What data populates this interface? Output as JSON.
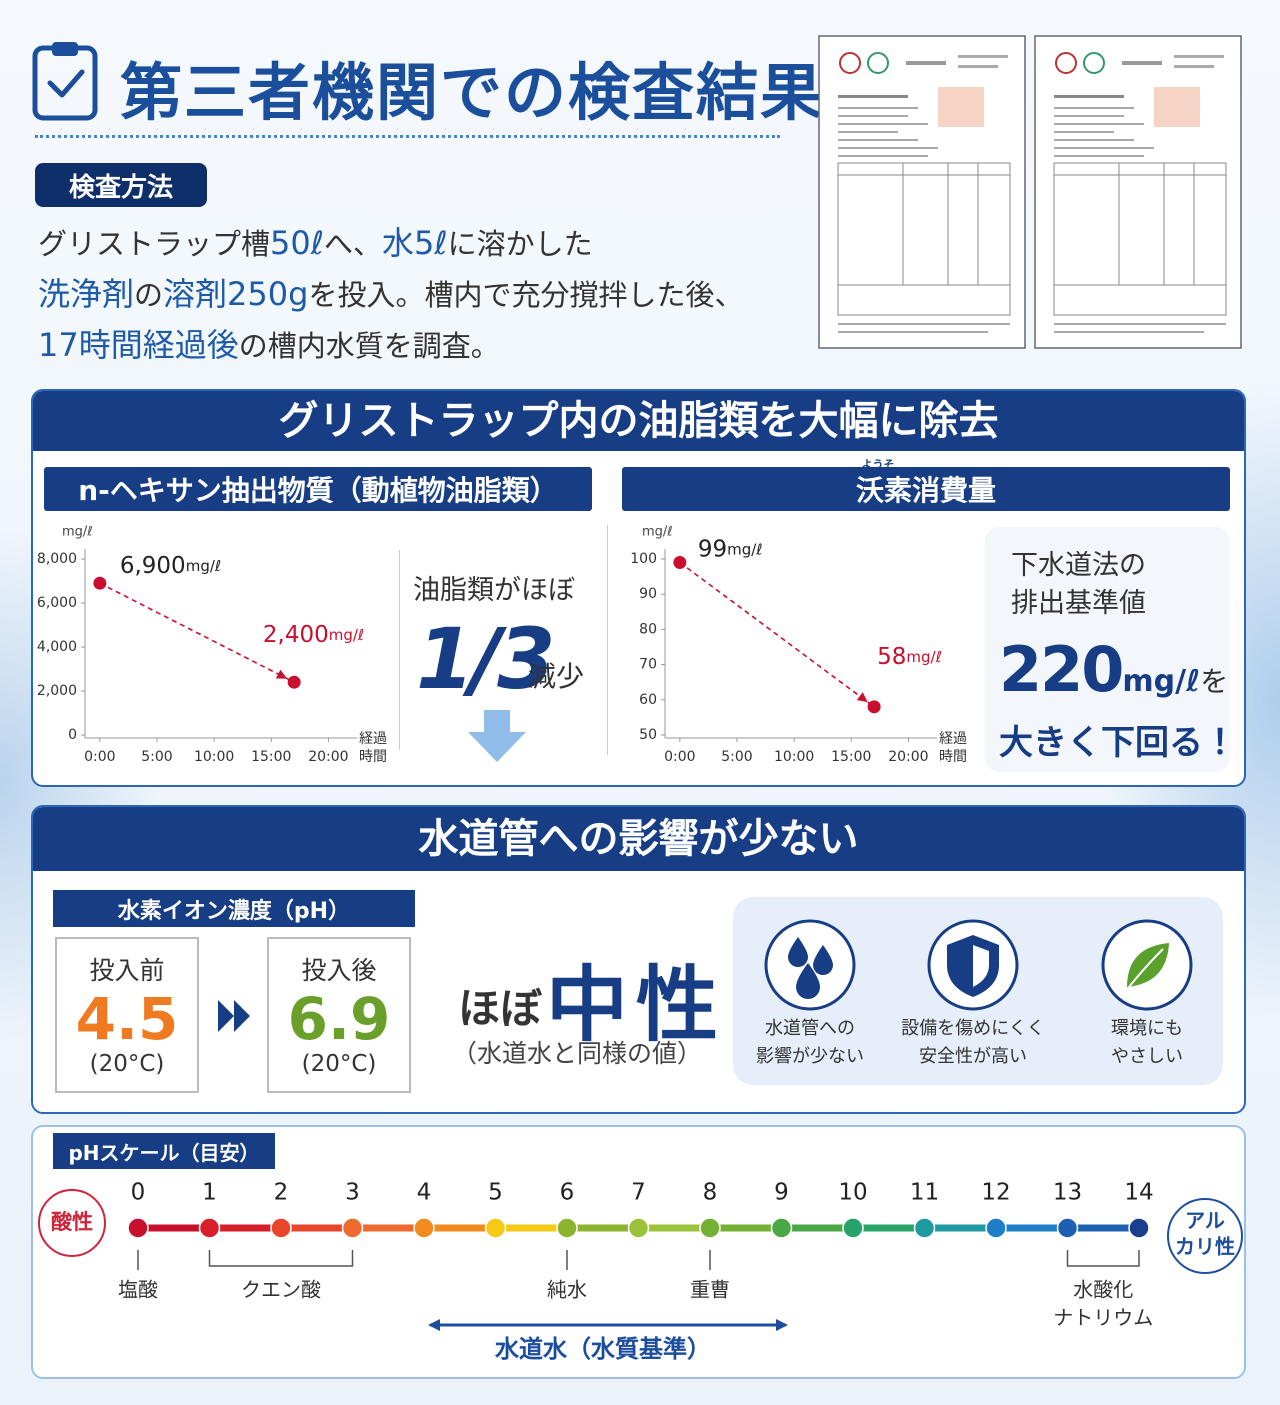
{
  "header": {
    "title": "第三者機関での検査結果"
  },
  "method": {
    "badge": "検査方法",
    "lines": [
      [
        {
          "text": "グリストラップ槽"
        },
        {
          "text": "50ℓ",
          "em": true
        },
        {
          "text": "へ、"
        },
        {
          "text": "水5ℓ",
          "em": true
        },
        {
          "text": "に溶かした"
        }
      ],
      [
        {
          "text": "洗浄剤",
          "em": true
        },
        {
          "text": "の"
        },
        {
          "text": "溶剤250g",
          "em": true
        },
        {
          "text": "を投入。槽内で充分撹拌した後、"
        }
      ],
      [
        {
          "text": "17時間経過後",
          "em": true
        },
        {
          "text": "の槽内水質を調査。"
        }
      ]
    ]
  },
  "section1": {
    "title": "グリストラップ内の油脂類を大幅に除去",
    "charts": [
      {
        "type": "line",
        "title": "n-ヘキサン抽出物質（動植物油脂類）",
        "y_unit": "mg/ℓ",
        "x_label": [
          "経過",
          "時間"
        ],
        "x": [
          0,
          17
        ],
        "values": [
          6900,
          2400
        ],
        "value_labels": [
          "6,900",
          "2,400"
        ],
        "value_unit": "mg/ℓ",
        "color": "#c8102e",
        "xlim": [
          -1.3,
          22.5
        ],
        "xticks": [
          {
            "value": 0,
            "label": "0:00"
          },
          {
            "value": 5,
            "label": "5:00"
          },
          {
            "value": 10,
            "label": "10:00"
          },
          {
            "value": 15,
            "label": "15:00"
          },
          {
            "value": 20,
            "label": "20:00"
          }
        ],
        "ylim": [
          0,
          8000
        ],
        "yticks": [
          0,
          {
            "value": 2000,
            "label": "2,000"
          },
          {
            "value": 4000,
            "label": "4,000"
          },
          {
            "value": 6000,
            "label": "6,000"
          },
          {
            "value": 8000,
            "label": "8,000"
          }
        ],
        "note": {
          "lead": "油脂類がほぼ",
          "big": "1/3",
          "tail": "減少"
        }
      },
      {
        "type": "line",
        "title": "沃素消費量",
        "ruby": "ようそ",
        "y_unit": "mg/ℓ",
        "x_label": [
          "経過",
          "時間"
        ],
        "x": [
          0,
          17
        ],
        "values": [
          99,
          58
        ],
        "value_labels": [
          "99",
          "58"
        ],
        "value_unit": "mg/ℓ",
        "color": "#c8102e",
        "xlim": [
          -1.3,
          22.5
        ],
        "xticks": [
          {
            "value": 0,
            "label": "0:00"
          },
          {
            "value": 5,
            "label": "5:00"
          },
          {
            "value": 10,
            "label": "10:00"
          },
          {
            "value": 15,
            "label": "15:00"
          },
          {
            "value": 20,
            "label": "20:00"
          }
        ],
        "ylim": [
          50,
          100
        ],
        "yticks": [
          50,
          60,
          70,
          80,
          90,
          100
        ],
        "callout": {
          "lines": [
            "下水道法の",
            "排出基準値"
          ],
          "value": 220,
          "unit": "mg/ℓ",
          "suffix": "を",
          "conclusion": "大きく下回る！"
        }
      }
    ]
  },
  "section2": {
    "title": "水道管への影響が少ない",
    "ph": {
      "label": "水素イオン濃度（pH）",
      "before": {
        "label": "投入前",
        "value": 4.5,
        "note": "(20°C)"
      },
      "after": {
        "label": "投入後",
        "value": 6.9,
        "note": "(20°C)"
      }
    },
    "verdict": {
      "lead": "ほぼ",
      "main": "中性",
      "note": "（水道水と同様の値）"
    },
    "benefits": [
      {
        "lines": [
          "水道管への",
          "影響が少ない"
        ]
      },
      {
        "lines": [
          "設備を傷めにくく",
          "安全性が高い"
        ]
      },
      {
        "lines": [
          "環境にも",
          "やさしい"
        ]
      }
    ]
  },
  "section3": {
    "label": "pHスケール（目安）",
    "acid": "酸性",
    "alkali": [
      "アル",
      "カリ性"
    ],
    "ticks": [
      0,
      1,
      2,
      3,
      4,
      5,
      6,
      7,
      8,
      9,
      10,
      11,
      12,
      13,
      14
    ],
    "colors": [
      "#c8102e",
      "#d71f2a",
      "#e8452b",
      "#ef6a2f",
      "#f28a1e",
      "#f6c915",
      "#8db42f",
      "#9cc23a",
      "#74b034",
      "#4aa844",
      "#2aa36b",
      "#1e9aa0",
      "#1d7fc8",
      "#1d5fb0",
      "#1a3f8f"
    ],
    "markers": [
      {
        "lines": [
          "塩酸"
        ],
        "range": [
          0,
          0
        ]
      },
      {
        "lines": [
          "クエン酸"
        ],
        "range": [
          1,
          3
        ]
      },
      {
        "lines": [
          "純水"
        ],
        "range": [
          6,
          6
        ]
      },
      {
        "lines": [
          "重曹"
        ],
        "range": [
          8,
          8
        ]
      },
      {
        "lines": [
          "水酸化",
          "ナトリウム"
        ],
        "range": [
          13,
          14
        ]
      }
    ],
    "tap_water": "水道水（水質基準）"
  }
}
